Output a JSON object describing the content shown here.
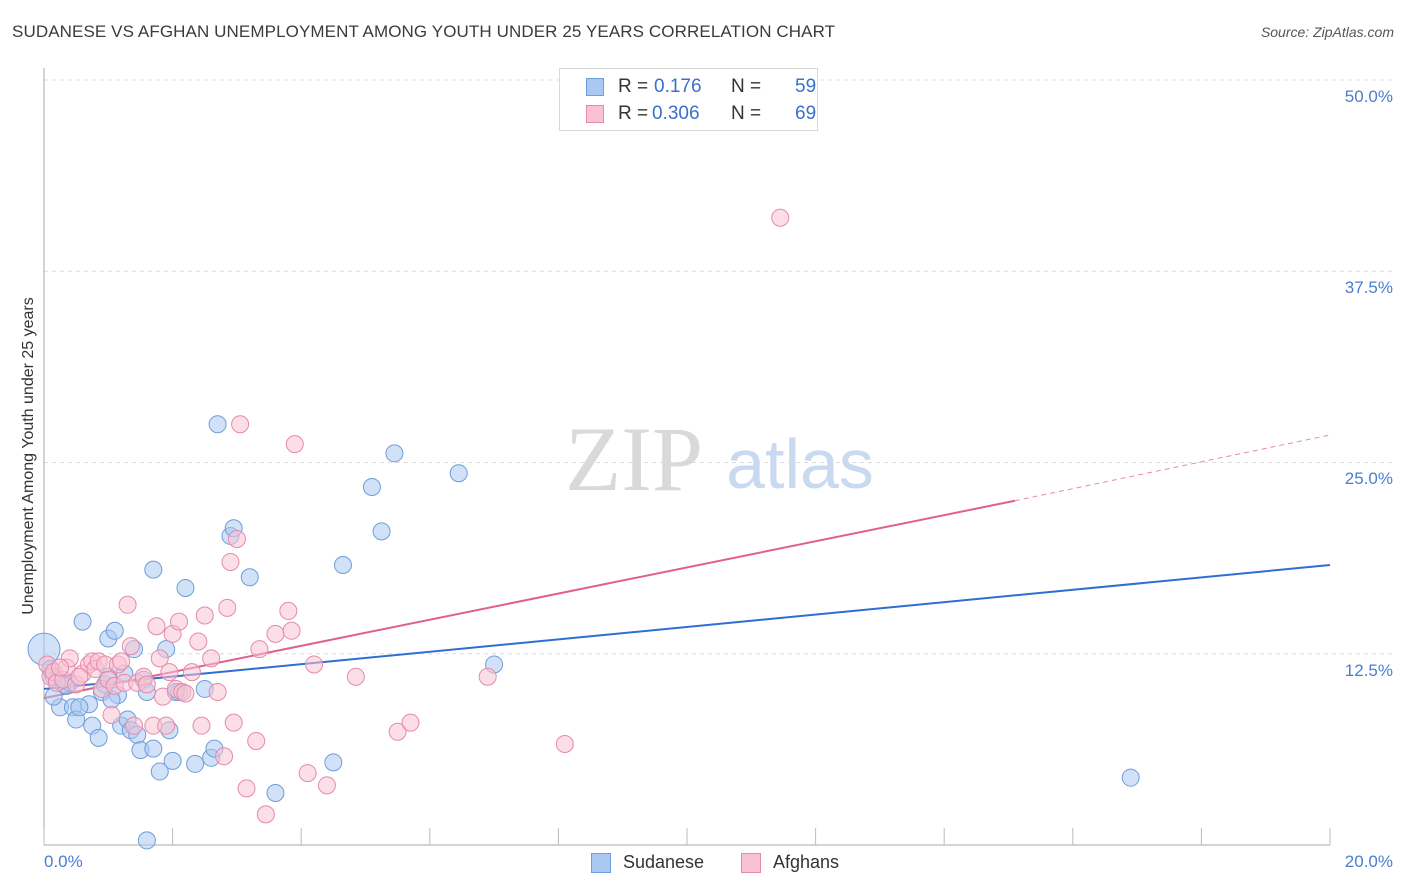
{
  "title": "SUDANESE VS AFGHAN UNEMPLOYMENT AMONG YOUTH UNDER 25 YEARS CORRELATION CHART",
  "source": "Source: ZipAtlas.com",
  "watermark": {
    "zip": "ZIP",
    "atlas": "atlas"
  },
  "legend": {
    "rows": [
      {
        "r_label": "R =",
        "r_value": "0.176",
        "n_label": "N =",
        "n_value": "59",
        "color": "#a9c8f2",
        "border": "#6f9ed8"
      },
      {
        "r_label": "R =",
        "r_value": "0.306",
        "n_label": "N =",
        "n_value": "69",
        "color": "#f9c2d4",
        "border": "#e58aaa"
      }
    ]
  },
  "bottom_legend": [
    {
      "label": "Sudanese",
      "color": "#a9c8f2",
      "border": "#6f9ed8"
    },
    {
      "label": "Afghans",
      "color": "#f9c2d4",
      "border": "#e58aaa"
    }
  ],
  "chart_data": {
    "type": "scatter",
    "title": "SUDANESE VS AFGHAN UNEMPLOYMENT AMONG YOUTH UNDER 25 YEARS CORRELATION CHART",
    "xlabel": "",
    "ylabel": "Unemployment Among Youth under 25 years",
    "xlim": [
      0,
      20
    ],
    "ylim": [
      0,
      50
    ],
    "x_tick_labels": [
      "0.0%",
      "20.0%"
    ],
    "y_tick_values": [
      12.5,
      25.0,
      37.5,
      50.0
    ],
    "y_tick_labels": [
      "12.5%",
      "25.0%",
      "37.5%",
      "50.0%"
    ],
    "grid": true,
    "legend_position": "top-center",
    "series": [
      {
        "name": "Sudanese",
        "color": "#6f9ed8",
        "fill": "#a9c8f2",
        "trend": {
          "x": [
            0,
            20
          ],
          "y": [
            10.2,
            18.3
          ],
          "color": "#2f6fd0"
        },
        "points": [
          [
            0.0,
            12.8
          ],
          [
            0.1,
            11.5
          ],
          [
            0.15,
            11.0
          ],
          [
            0.2,
            10.8
          ],
          [
            0.25,
            9.0
          ],
          [
            0.3,
            10.5
          ],
          [
            0.4,
            10.6
          ],
          [
            0.45,
            9.0
          ],
          [
            0.5,
            8.2
          ],
          [
            0.6,
            14.6
          ],
          [
            0.7,
            9.2
          ],
          [
            0.75,
            7.8
          ],
          [
            0.85,
            7.0
          ],
          [
            0.9,
            10.0
          ],
          [
            0.95,
            10.5
          ],
          [
            1.0,
            11.0
          ],
          [
            1.0,
            13.5
          ],
          [
            1.1,
            14.0
          ],
          [
            1.15,
            9.8
          ],
          [
            1.2,
            7.8
          ],
          [
            1.3,
            8.2
          ],
          [
            1.35,
            7.5
          ],
          [
            1.4,
            12.8
          ],
          [
            1.45,
            7.2
          ],
          [
            1.5,
            6.2
          ],
          [
            1.55,
            10.8
          ],
          [
            1.6,
            10.0
          ],
          [
            1.7,
            6.3
          ],
          [
            1.7,
            18.0
          ],
          [
            1.8,
            4.8
          ],
          [
            1.9,
            12.8
          ],
          [
            1.95,
            7.5
          ],
          [
            2.0,
            5.5
          ],
          [
            2.1,
            10.0
          ],
          [
            2.2,
            16.8
          ],
          [
            2.35,
            5.3
          ],
          [
            2.5,
            10.2
          ],
          [
            2.6,
            5.7
          ],
          [
            2.65,
            6.3
          ],
          [
            2.7,
            27.5
          ],
          [
            2.9,
            20.2
          ],
          [
            2.95,
            20.7
          ],
          [
            3.2,
            17.5
          ],
          [
            3.6,
            3.4
          ],
          [
            4.5,
            5.4
          ],
          [
            4.65,
            18.3
          ],
          [
            5.1,
            23.4
          ],
          [
            5.25,
            20.5
          ],
          [
            5.45,
            25.6
          ],
          [
            6.45,
            24.3
          ],
          [
            7.0,
            11.8
          ],
          [
            16.9,
            4.4
          ],
          [
            1.6,
            0.3
          ],
          [
            0.15,
            9.7
          ],
          [
            0.55,
            9.0
          ],
          [
            1.25,
            11.2
          ],
          [
            0.35,
            10.4
          ],
          [
            2.05,
            10.0
          ],
          [
            1.05,
            9.5
          ]
        ]
      },
      {
        "name": "Afghans",
        "color": "#e58aaa",
        "fill": "#f9c2d4",
        "trend": {
          "x": [
            0,
            15.1
          ],
          "y": [
            9.6,
            22.5
          ],
          "dash_to": [
            20,
            26.8
          ],
          "color": "#e0608a"
        },
        "points": [
          [
            0.05,
            11.8
          ],
          [
            0.1,
            11.0
          ],
          [
            0.15,
            11.3
          ],
          [
            0.2,
            10.6
          ],
          [
            0.3,
            10.8
          ],
          [
            0.35,
            11.6
          ],
          [
            0.4,
            12.2
          ],
          [
            0.5,
            10.5
          ],
          [
            0.6,
            11.2
          ],
          [
            0.7,
            11.8
          ],
          [
            0.75,
            12.0
          ],
          [
            0.8,
            11.5
          ],
          [
            0.85,
            12.0
          ],
          [
            0.9,
            10.2
          ],
          [
            0.95,
            11.8
          ],
          [
            1.0,
            10.8
          ],
          [
            1.05,
            8.5
          ],
          [
            1.1,
            10.4
          ],
          [
            1.15,
            11.8
          ],
          [
            1.2,
            12.0
          ],
          [
            1.25,
            10.6
          ],
          [
            1.3,
            15.7
          ],
          [
            1.35,
            13.0
          ],
          [
            1.45,
            10.6
          ],
          [
            1.55,
            11.0
          ],
          [
            1.6,
            10.5
          ],
          [
            1.7,
            7.8
          ],
          [
            1.75,
            14.3
          ],
          [
            1.8,
            12.2
          ],
          [
            1.85,
            9.7
          ],
          [
            1.9,
            7.8
          ],
          [
            1.95,
            11.3
          ],
          [
            2.0,
            13.8
          ],
          [
            2.05,
            10.2
          ],
          [
            2.1,
            14.6
          ],
          [
            2.15,
            10.0
          ],
          [
            2.2,
            9.9
          ],
          [
            2.3,
            11.3
          ],
          [
            2.4,
            13.3
          ],
          [
            2.45,
            7.8
          ],
          [
            2.5,
            15.0
          ],
          [
            2.6,
            12.2
          ],
          [
            2.7,
            10.0
          ],
          [
            2.8,
            5.8
          ],
          [
            2.85,
            15.5
          ],
          [
            2.9,
            18.5
          ],
          [
            2.95,
            8.0
          ],
          [
            3.0,
            20.0
          ],
          [
            3.05,
            27.5
          ],
          [
            3.15,
            3.7
          ],
          [
            3.3,
            6.8
          ],
          [
            3.35,
            12.8
          ],
          [
            3.45,
            2.0
          ],
          [
            3.6,
            13.8
          ],
          [
            3.8,
            15.3
          ],
          [
            3.85,
            14.0
          ],
          [
            3.9,
            26.2
          ],
          [
            4.1,
            4.7
          ],
          [
            4.2,
            11.8
          ],
          [
            4.4,
            3.9
          ],
          [
            4.85,
            11.0
          ],
          [
            5.5,
            7.4
          ],
          [
            5.7,
            8.0
          ],
          [
            6.9,
            11.0
          ],
          [
            8.1,
            6.6
          ],
          [
            11.45,
            41.0
          ],
          [
            0.25,
            11.6
          ],
          [
            1.4,
            7.8
          ],
          [
            0.55,
            11.0
          ]
        ]
      }
    ]
  }
}
